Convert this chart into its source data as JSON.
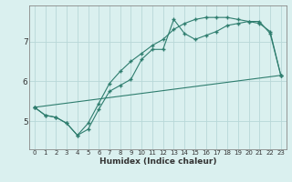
{
  "xlabel": "Humidex (Indice chaleur)",
  "ylabel": "",
  "bg_color": "#daf0ef",
  "line_color": "#2e7d6e",
  "grid_major_color": "#b8d8d8",
  "grid_minor_color": "#cce6e6",
  "axis_color": "#444444",
  "xlim": [
    -0.5,
    23.5
  ],
  "ylim": [
    4.3,
    7.9
  ],
  "yticks": [
    5,
    6,
    7
  ],
  "xticks": [
    0,
    1,
    2,
    3,
    4,
    5,
    6,
    7,
    8,
    9,
    10,
    11,
    12,
    13,
    14,
    15,
    16,
    17,
    18,
    19,
    20,
    21,
    22,
    23
  ],
  "line1_x": [
    0,
    1,
    2,
    3,
    4,
    5,
    6,
    7,
    8,
    9,
    10,
    11,
    12,
    13,
    14,
    15,
    16,
    17,
    18,
    19,
    20,
    21,
    22,
    23
  ],
  "line1_y": [
    5.35,
    5.15,
    5.1,
    4.95,
    4.65,
    4.8,
    5.3,
    5.75,
    5.9,
    6.05,
    6.55,
    6.8,
    6.8,
    7.55,
    7.2,
    7.05,
    7.15,
    7.25,
    7.4,
    7.45,
    7.5,
    7.5,
    7.2,
    6.15
  ],
  "line2_x": [
    0,
    1,
    2,
    3,
    4,
    5,
    6,
    7,
    8,
    9,
    10,
    11,
    12,
    13,
    14,
    15,
    16,
    17,
    18,
    19,
    20,
    21,
    22,
    23
  ],
  "line2_y": [
    5.35,
    5.15,
    5.1,
    4.95,
    4.65,
    4.95,
    5.45,
    5.95,
    6.25,
    6.5,
    6.7,
    6.9,
    7.05,
    7.3,
    7.45,
    7.55,
    7.6,
    7.6,
    7.6,
    7.55,
    7.5,
    7.45,
    7.25,
    6.15
  ],
  "line3_x": [
    0,
    23
  ],
  "line3_y": [
    5.35,
    6.15
  ]
}
